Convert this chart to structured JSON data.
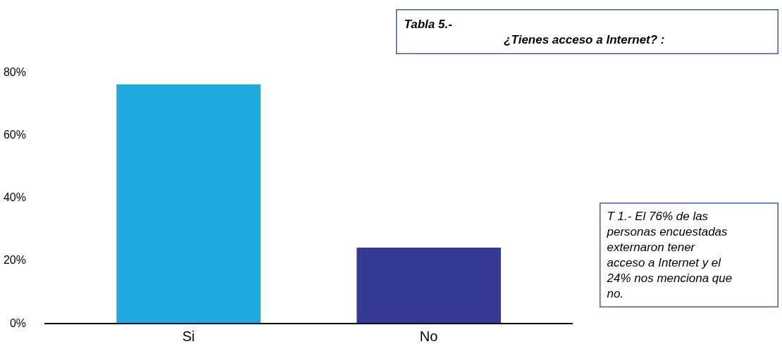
{
  "chart_data": {
    "type": "bar",
    "title": "Tabla 5.-\n¿Tienes acceso a Internet? :",
    "categories": [
      "Si",
      "No"
    ],
    "values": [
      76,
      24
    ],
    "colors": [
      "#1fa9dc",
      "#363a94"
    ],
    "ylim": [
      0,
      80
    ],
    "yticks": [
      {
        "value": 0,
        "label": "0%"
      },
      {
        "value": 20,
        "label": "20%"
      },
      {
        "value": 40,
        "label": "40%"
      },
      {
        "value": 60,
        "label": "60%"
      },
      {
        "value": 80,
        "label": "80%"
      }
    ],
    "legend": false,
    "annotations": [
      "T 1.- El 76% de las personas encuestadas externaron tener acceso a Internet y el 24% nos menciona que no."
    ]
  }
}
